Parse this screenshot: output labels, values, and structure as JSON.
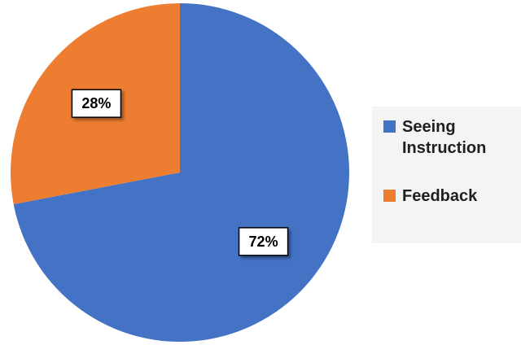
{
  "chart_data": {
    "type": "pie",
    "categories": [
      "Seeing Instruction",
      "Feedback"
    ],
    "values": [
      72,
      28
    ],
    "value_labels": [
      "72%",
      "28%"
    ],
    "colors": [
      "#4472C4",
      "#ED7D31"
    ],
    "start_angle": "12 o'clock",
    "direction": "clockwise",
    "legend_position": "right"
  },
  "legend": {
    "items": [
      {
        "label": "Seeing Instruction",
        "color": "#4472C4"
      },
      {
        "label": "Feedback",
        "color": "#ED7D31"
      }
    ]
  }
}
